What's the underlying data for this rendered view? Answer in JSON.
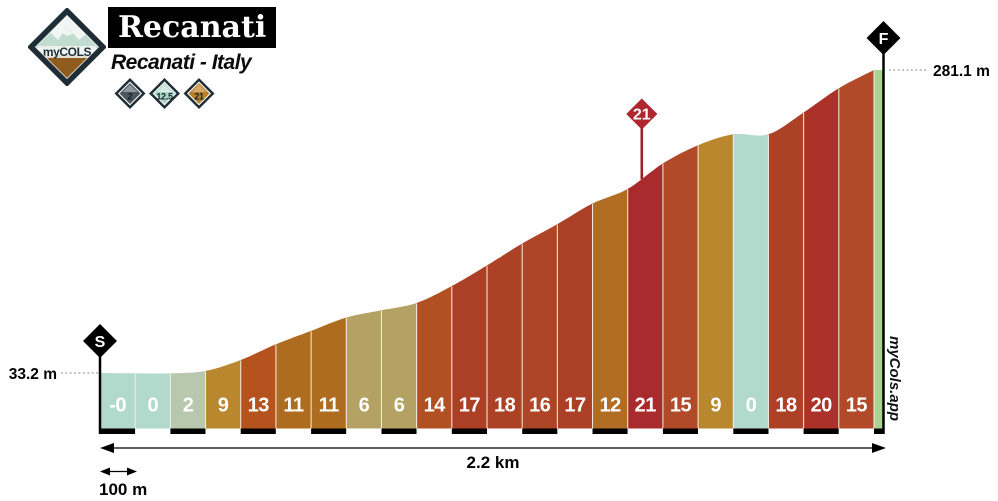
{
  "header": {
    "logo_text": "myCOLS",
    "title": "Recanati",
    "subtitle": "Recanati - Italy",
    "badges": [
      {
        "name": "climb-length-km",
        "label": "2",
        "fill": "#4b555d",
        "top": "#8f979d"
      },
      {
        "name": "avg-gradient",
        "label": "12.5",
        "fill": "#a9d6c6",
        "top": "#d6eae2"
      },
      {
        "name": "max-gradient",
        "label": "21",
        "fill": "#b8802a",
        "top": "#d2a968"
      }
    ]
  },
  "chart_data": {
    "type": "area",
    "title": "Recanati climb elevation profile",
    "total_distance_label": "2.2 km",
    "scale_bar_label": "100 m",
    "segment_length_m": 100,
    "start": {
      "marker": "S",
      "elevation_label": "33.2 m",
      "elevation_m": 33.2
    },
    "finish": {
      "marker": "F",
      "elevation_label": "281.1 m",
      "elevation_m": 281.1
    },
    "gradients_percent_per_100m": [
      "-0",
      "0",
      "2",
      "9",
      "13",
      "11",
      "11",
      "6",
      "6",
      "14",
      "17",
      "18",
      "16",
      "17",
      "12",
      "21",
      "15",
      "9",
      "0",
      "18",
      "20",
      "15"
    ],
    "gradient_values": [
      -0.3,
      0,
      2,
      9,
      13,
      11,
      11,
      6,
      6,
      14,
      17,
      18,
      16,
      17,
      12,
      21,
      15,
      9,
      0,
      18,
      20,
      15
    ],
    "max_gradient_marker": {
      "label": "21",
      "segment_index": 15
    },
    "palette": {
      "0": "#b2dacc",
      "2": "#b8c8ac",
      "6": "#b4a164",
      "9": "#b8872e",
      "11": "#ae6c1e",
      "12": "#b26d24",
      "13": "#b4531d",
      "14": "#b15022",
      "15": "#b04a29",
      "16": "#ae4527",
      "17": "#ac4026",
      "18": "#ad4126",
      "20": "#ac3129",
      "21": "#aa2b2e"
    },
    "finish_strip_color": "#a7d290",
    "marker_red": "#b0262e",
    "tick_colors": [
      "#000000",
      "#ffffff"
    ],
    "legend_position": "none",
    "grid": false
  },
  "watermark": "myCols.app"
}
